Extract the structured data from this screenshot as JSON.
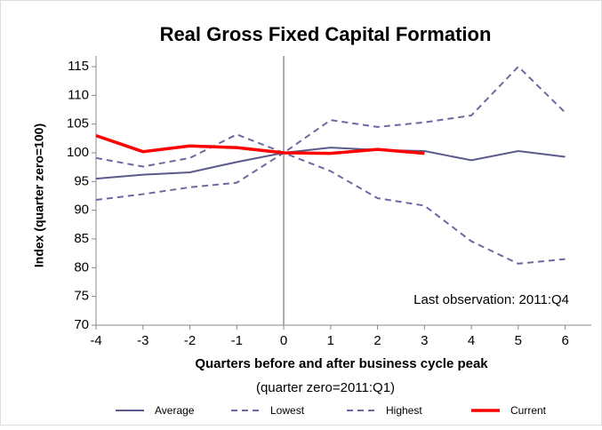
{
  "chart_data": {
    "type": "line",
    "title": "Real Gross Fixed Capital Formation",
    "y_label": "Index (quarter zero=100)",
    "x_label": "Quarters before and after business cycle peak",
    "x_sublabel": "(quarter zero=2011:Q1)",
    "annotation": "Last observation: 2011:Q4",
    "x": [
      -4,
      -3,
      -2,
      -1,
      0,
      1,
      2,
      3,
      4,
      5,
      6
    ],
    "xlim": [
      -4,
      6.5
    ],
    "xticks": [
      -4,
      -3,
      -2,
      -1,
      0,
      1,
      2,
      3,
      4,
      5,
      6
    ],
    "ylim": [
      70,
      115
    ],
    "yticks": [
      70,
      75,
      80,
      85,
      90,
      95,
      100,
      105,
      110,
      115
    ],
    "series": [
      {
        "name": "Average",
        "color": "#5a5a8c",
        "dash": false,
        "values": [
          95.5,
          96.2,
          96.6,
          98.4,
          100,
          100.9,
          100.5,
          100.3,
          98.7,
          100.3,
          99.3
        ]
      },
      {
        "name": "Lowest",
        "color": "#6a6aa0",
        "dash": true,
        "values": [
          91.8,
          92.8,
          94.0,
          94.8,
          100,
          96.8,
          92.1,
          90.8,
          84.6,
          80.7,
          81.5
        ]
      },
      {
        "name": "Highest",
        "color": "#6a6aa0",
        "dash": true,
        "values": [
          99.1,
          97.6,
          99.1,
          103.2,
          100,
          105.7,
          104.5,
          105.3,
          106.5,
          115,
          107
        ]
      },
      {
        "name": "Current",
        "color": "#ff0000",
        "dash": false,
        "values": [
          103,
          100.2,
          101.2,
          100.9,
          100,
          99.9,
          100.6,
          99.9,
          null,
          null,
          null
        ]
      }
    ]
  }
}
